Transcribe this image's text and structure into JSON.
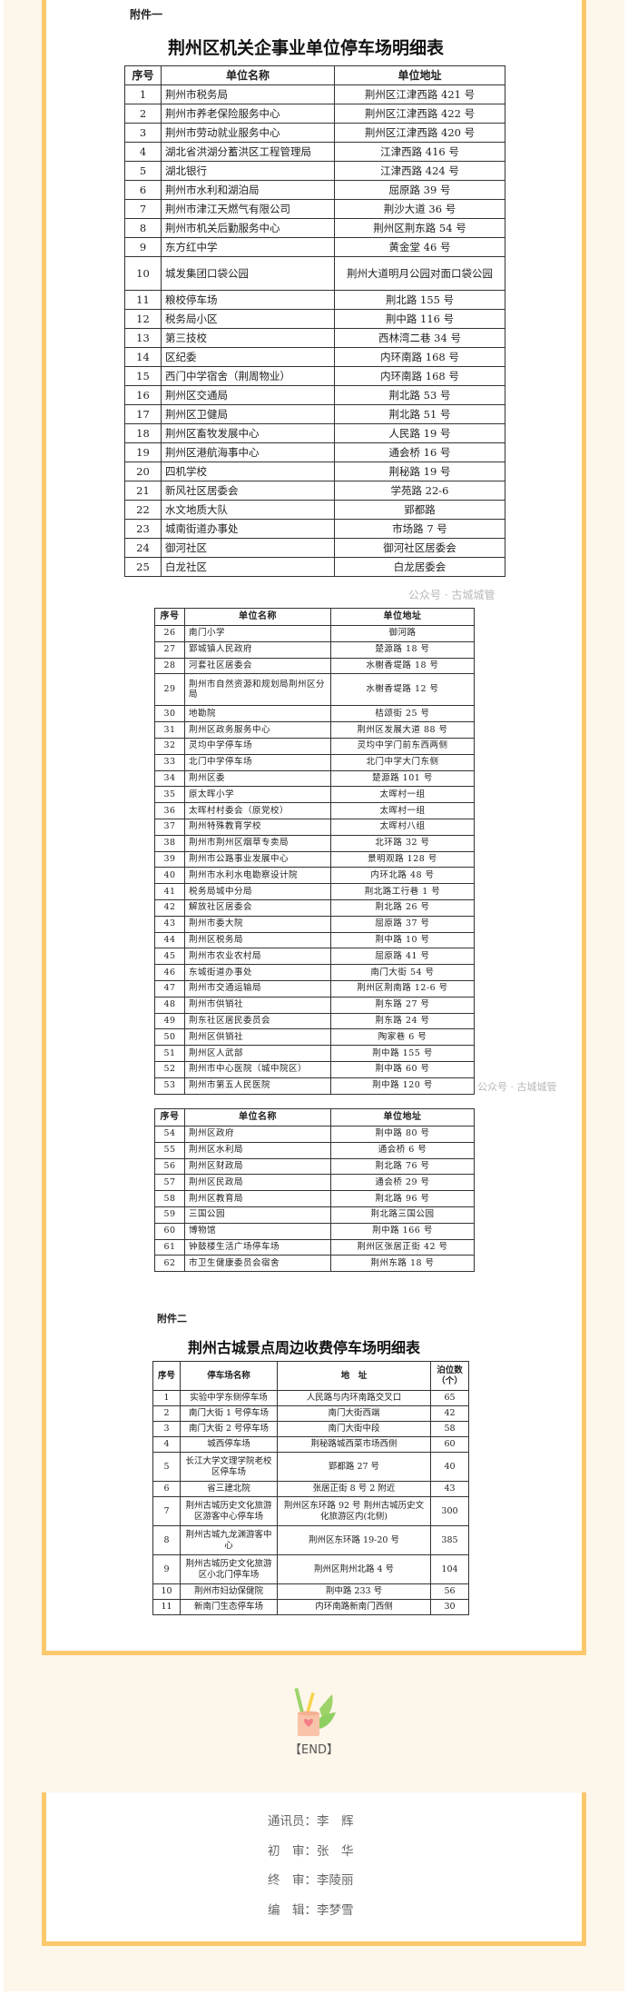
{
  "colors": {
    "frame": "#fcc86c",
    "background": "#fdf6ea",
    "credit_text": "#666666"
  },
  "attachment1": {
    "label": "附件一",
    "title": "荆州区机关企事业单位停车场明细表",
    "headers": [
      "序号",
      "单位名称",
      "单位地址"
    ],
    "rows": [
      [
        "1",
        "荆州市税务局",
        "荆州区江津西路 421 号"
      ],
      [
        "2",
        "荆州市养老保险服务中心",
        "荆州区江津西路 422 号"
      ],
      [
        "3",
        "荆州市劳动就业服务中心",
        "荆州区江津西路 420 号"
      ],
      [
        "4",
        "湖北省洪湖分蓄洪区工程管理局",
        "江津西路 416 号"
      ],
      [
        "5",
        "湖北银行",
        "江津西路 424 号"
      ],
      [
        "6",
        "荆州市水利和湖泊局",
        "屈原路 39 号"
      ],
      [
        "7",
        "荆州市津江天燃气有限公司",
        "荆沙大道 36 号"
      ],
      [
        "8",
        "荆州市机关后勤服务中心",
        "荆州区荆东路 54 号"
      ],
      [
        "9",
        "东方红中学",
        "黄金堂 46 号"
      ],
      [
        "10",
        "城发集团口袋公园",
        "荆州大道明月公园对面口袋公园"
      ],
      [
        "11",
        "粮校停车场",
        "荆北路 155 号"
      ],
      [
        "12",
        "税务局小区",
        "荆中路 116 号"
      ],
      [
        "13",
        "第三技校",
        "西林湾二巷 34 号"
      ],
      [
        "14",
        "区纪委",
        "内环南路 168 号"
      ],
      [
        "15",
        "西门中学宿舍（荆周物业）",
        "内环南路 168 号"
      ],
      [
        "16",
        "荆州区交通局",
        "荆北路 53 号"
      ],
      [
        "17",
        "荆州区卫健局",
        "荆北路 51 号"
      ],
      [
        "18",
        "荆州区畜牧发展中心",
        "人民路 19 号"
      ],
      [
        "19",
        "荆州区港航海事中心",
        "通会桥 16 号"
      ],
      [
        "20",
        "四机学校",
        "荆秘路 19 号"
      ],
      [
        "21",
        "新风社区居委会",
        "学苑路 22-6"
      ],
      [
        "22",
        "水文地质大队",
        "郢都路"
      ],
      [
        "23",
        "城南街道办事处",
        "市场路 7 号"
      ],
      [
        "24",
        "御河社区",
        "御河社区居委会"
      ],
      [
        "25",
        "白龙社区",
        "白龙居委会"
      ]
    ],
    "rows_page2": [
      [
        "26",
        "南门小学",
        "御河路"
      ],
      [
        "27",
        "郢城镇人民政府",
        "楚源路 18 号"
      ],
      [
        "28",
        "河套社区居委会",
        "水榭香堤路 18 号"
      ],
      [
        "29",
        "荆州市自然资源和规划局荆州区分局",
        "水榭香堤路 12 号"
      ],
      [
        "30",
        "地勘院",
        "桔颂街 25 号"
      ],
      [
        "31",
        "荆州区政务服务中心",
        "荆州区发展大道 88 号"
      ],
      [
        "32",
        "灵均中学停车场",
        "灵均中学门前东西两侧"
      ],
      [
        "33",
        "北门中学停车场",
        "北门中学大门东侧"
      ],
      [
        "34",
        "荆州区委",
        "楚源路 101 号"
      ],
      [
        "35",
        "原太晖小学",
        "太晖村一组"
      ],
      [
        "36",
        "太晖村村委会（原党校）",
        "太晖村一组"
      ],
      [
        "37",
        "荆州特殊教育学校",
        "太晖村八组"
      ],
      [
        "38",
        "荆州市荆州区烟草专卖局",
        "北环路 32 号"
      ],
      [
        "39",
        "荆州市公路事业发展中心",
        "景明观路 128 号"
      ],
      [
        "40",
        "荆州市水利水电勘察设计院",
        "内环北路 48 号"
      ],
      [
        "41",
        "税务局城中分局",
        "荆北路工行巷 1 号"
      ],
      [
        "42",
        "解放社区居委会",
        "荆北路 26 号"
      ],
      [
        "43",
        "荆州市委大院",
        "屈原路 37 号"
      ],
      [
        "44",
        "荆州区税务局",
        "荆中路 10 号"
      ],
      [
        "45",
        "荆州市农业农村局",
        "屈原路 41 号"
      ],
      [
        "46",
        "东城街道办事处",
        "南门大街 54 号"
      ],
      [
        "47",
        "荆州市交通运输局",
        "荆州区荆南路 12-6 号"
      ],
      [
        "48",
        "荆州市供销社",
        "荆东路 27 号"
      ],
      [
        "49",
        "荆东社区居民委员会",
        "荆东路 24 号"
      ],
      [
        "50",
        "荆州区供销社",
        "陶家巷 6 号"
      ],
      [
        "51",
        "荆州区人武部",
        "荆中路 155 号"
      ],
      [
        "52",
        "荆州市中心医院（城中院区）",
        "荆中路 60 号"
      ],
      [
        "53",
        "荆州市第五人民医院",
        "荆中路 120 号"
      ]
    ],
    "rows_page3": [
      [
        "54",
        "荆州区政府",
        "荆中路 80 号"
      ],
      [
        "55",
        "荆州区水利局",
        "通会桥 6 号"
      ],
      [
        "56",
        "荆州区财政局",
        "荆北路 76 号"
      ],
      [
        "57",
        "荆州区民政局",
        "通会桥 29 号"
      ],
      [
        "58",
        "荆州区教育局",
        "荆北路 96 号"
      ],
      [
        "59",
        "三国公园",
        "荆北路三国公园"
      ],
      [
        "60",
        "博物馆",
        "荆中路 166 号"
      ],
      [
        "61",
        "钟鼓楼生活广场停车场",
        "荆州区张居正街 42 号"
      ],
      [
        "62",
        "市卫生健康委员会宿舍",
        "荆州东路 18 号"
      ]
    ]
  },
  "attachment2": {
    "label": "附件二",
    "title": "荆州古城景点周边收费停车场明细表",
    "headers": [
      "序号",
      "停车场名称",
      "地　址",
      "泊位数（个）"
    ],
    "rows": [
      [
        "1",
        "实验中学东侧停车场",
        "人民路与内环南路交叉口",
        "65"
      ],
      [
        "2",
        "南门大街 1 号停车场",
        "南门大街西端",
        "42"
      ],
      [
        "3",
        "南门大街 2 号停车场",
        "南门大街中段",
        "58"
      ],
      [
        "4",
        "城西停车场",
        "荆秘路城西菜市场西侧",
        "60"
      ],
      [
        "5",
        "长江大学文理学院老校区停车场",
        "郢都路 27 号",
        "40"
      ],
      [
        "6",
        "省三建北院",
        "张居正街 8 号 2 附近",
        "43"
      ],
      [
        "7",
        "荆州古城历史文化旅游区游客中心停车场",
        "荆州区东环路 92 号 荆州古城历史文化旅游区内(北侧)",
        "300"
      ],
      [
        "8",
        "荆州古城九龙渊游客中心",
        "荆州区东环路 19-20 号",
        "385"
      ],
      [
        "9",
        "荆州古城历史文化旅游区小北门停车场",
        "荆州区荆州北路 4 号",
        "104"
      ],
      [
        "10",
        "荆州市妇幼保健院",
        "荆中路 233 号",
        "56"
      ],
      [
        "11",
        "新南门生态停车场",
        "内环南路新南门西侧",
        "30"
      ]
    ]
  },
  "watermark": "公众号 · 古城城管",
  "end_label": "【END】",
  "credits": [
    {
      "label": "通讯员：",
      "name": "李　辉"
    },
    {
      "label": "初　审：",
      "name": "张　华"
    },
    {
      "label": "终　审：",
      "name": "李陵丽"
    },
    {
      "label": "编　辑：",
      "name": "李梦雪"
    }
  ]
}
